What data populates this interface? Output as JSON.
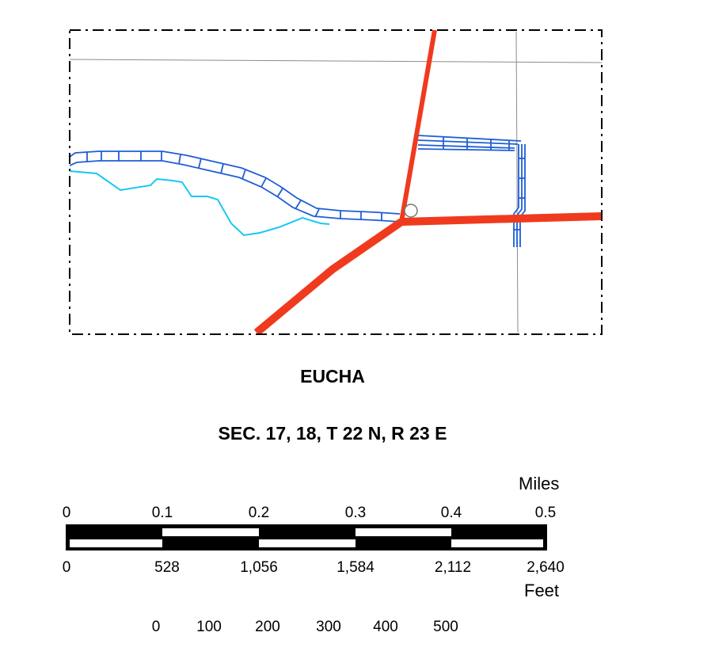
{
  "map": {
    "title": "EUCHA",
    "subtitle": "SEC. 17, 18, T 22 N, R 23 E",
    "colors": {
      "road": "#f03a1e",
      "section_line": "#8c8c8c",
      "stream": "#18c8f0",
      "canal": "#1e5ed6",
      "boundary": "#000000"
    }
  },
  "scale_bar": {
    "miles_unit": "Miles",
    "feet_unit": "Feet",
    "miles_ticks": [
      "0",
      "0.1",
      "0.2",
      "0.3",
      "0.4",
      "0.5"
    ],
    "feet_ticks": [
      "0",
      "528",
      "1,056",
      "1,584",
      "2,112",
      "2,640"
    ]
  },
  "secondary_scale": {
    "ticks": [
      "0",
      "100",
      "200",
      "300",
      "400",
      "500"
    ]
  }
}
